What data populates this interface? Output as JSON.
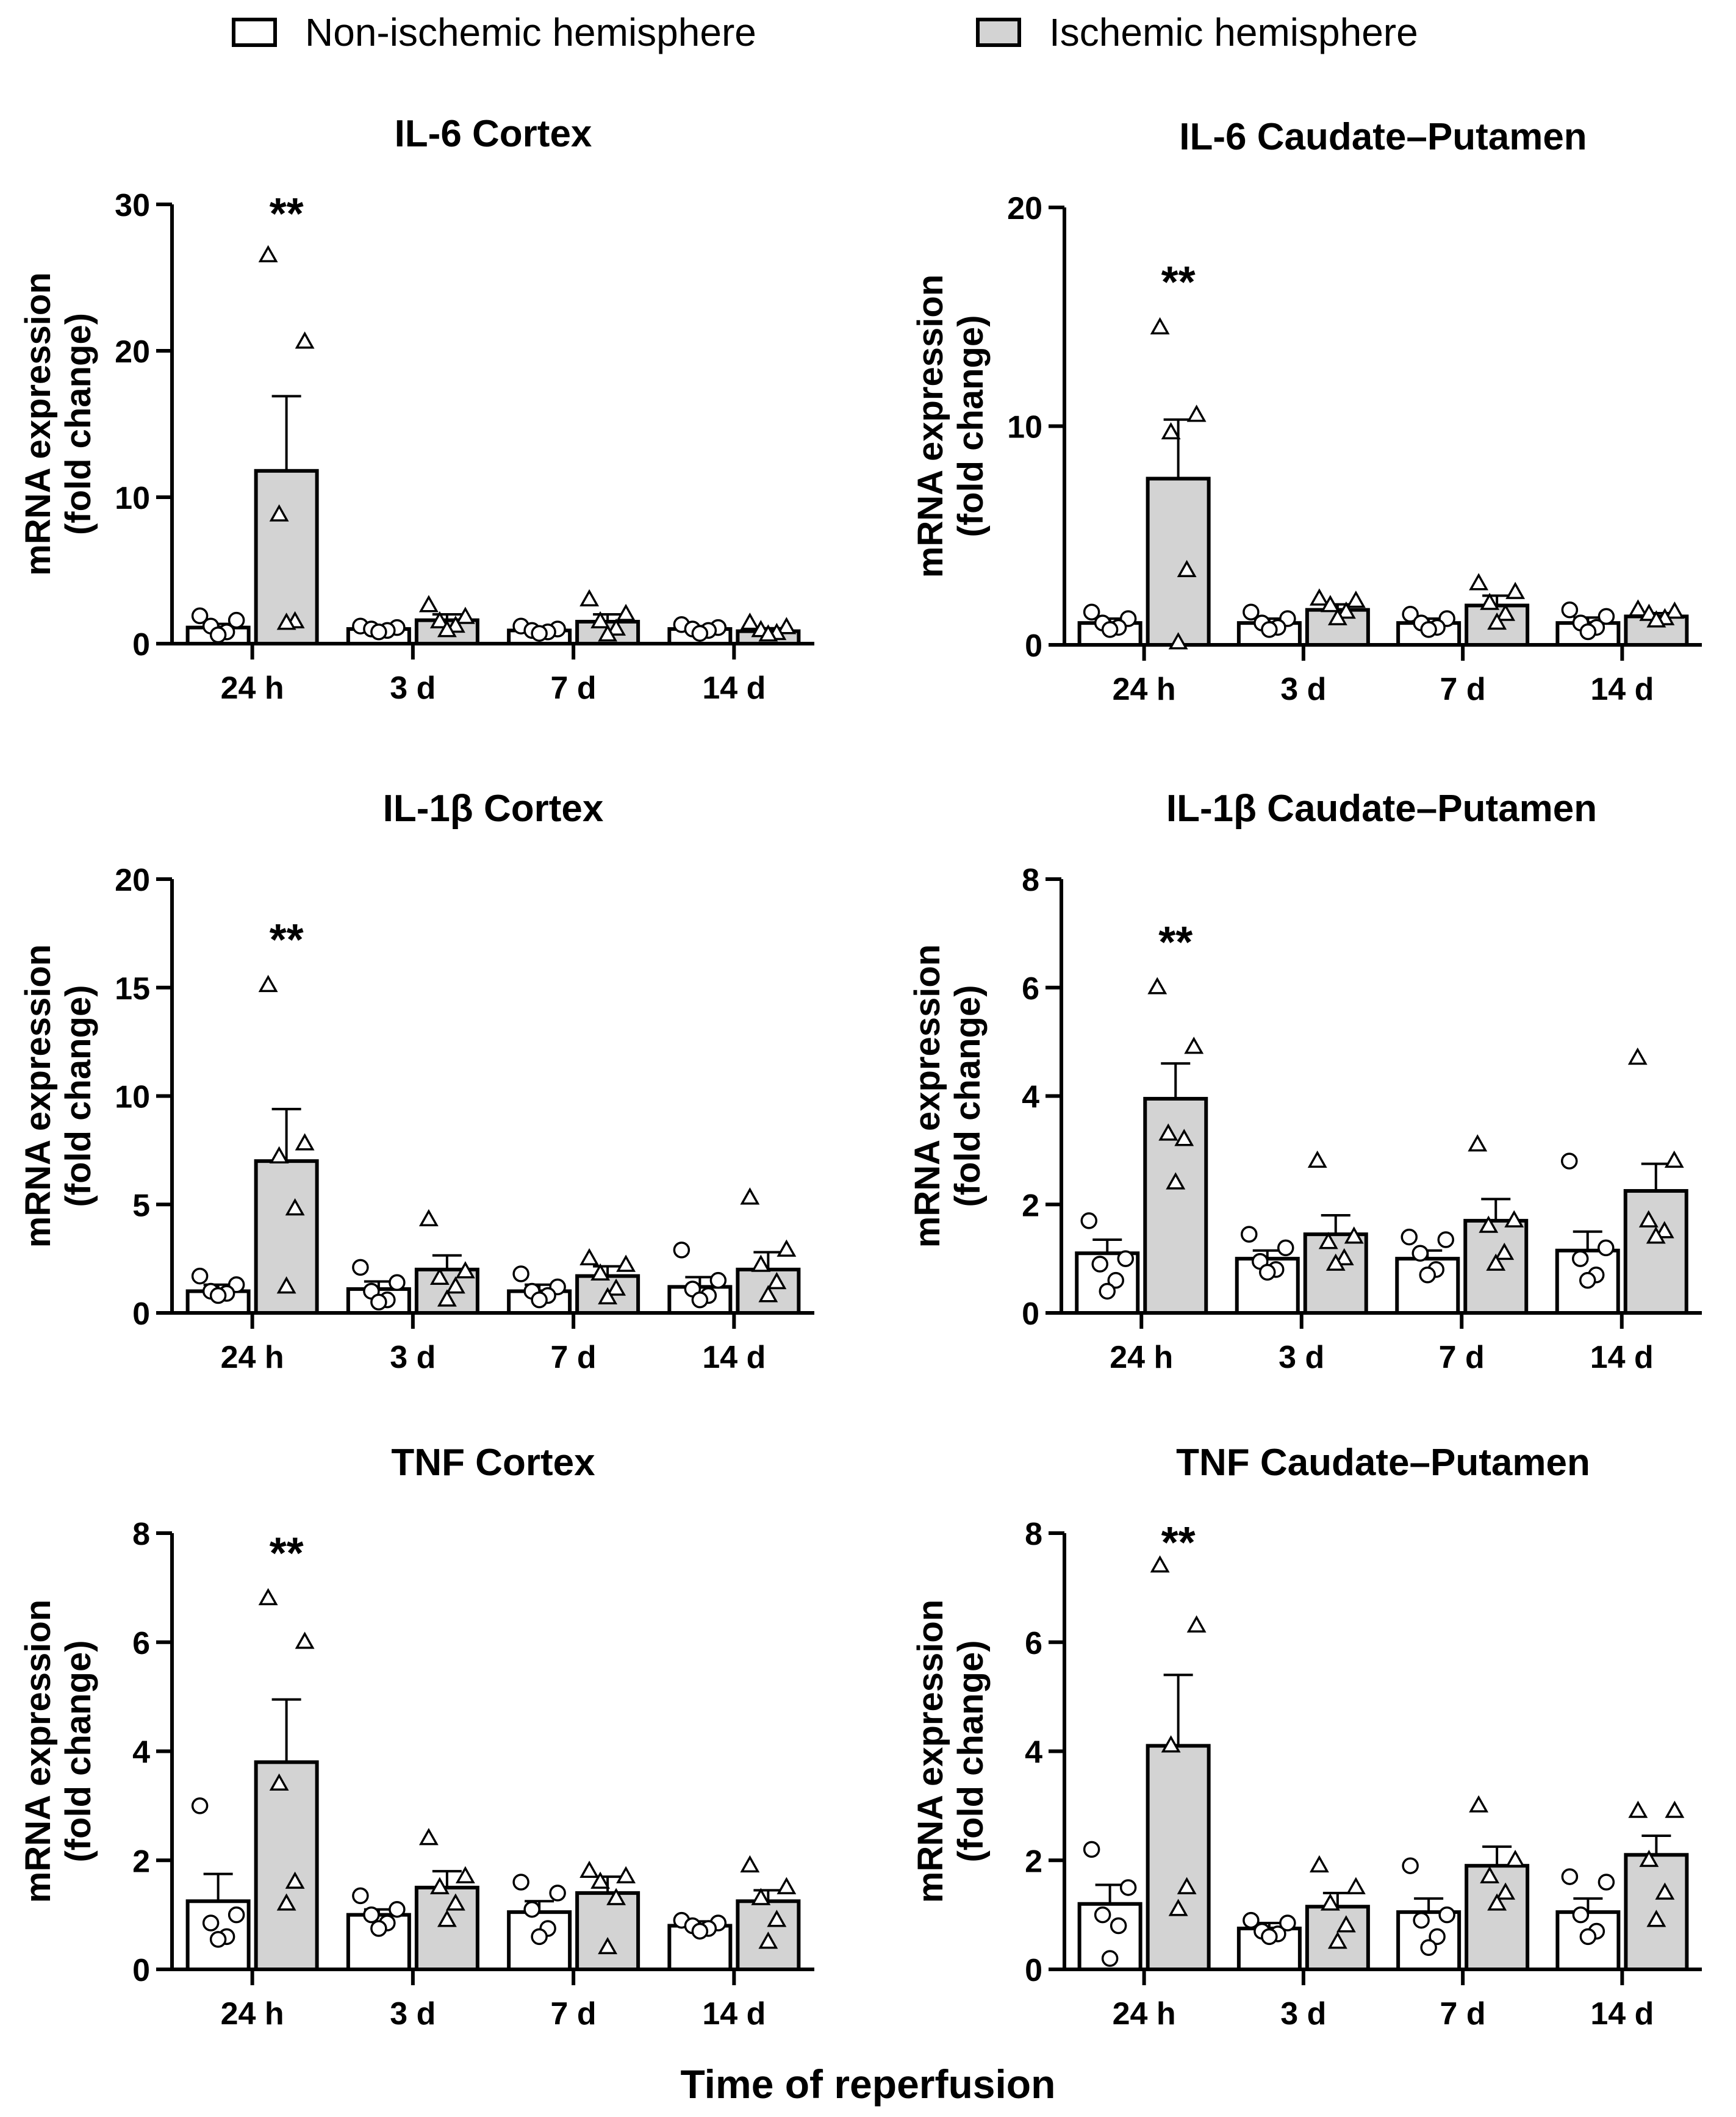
{
  "legend": {
    "non_ischemic": "Non-ischemic hemisphere",
    "ischemic": "Ischemic hemisphere"
  },
  "colors": {
    "non_ischemic": "#ffffff",
    "ischemic": "#d3d3d3",
    "axis": "#000000"
  },
  "x_axis_title": "Time of reperfusion",
  "chart_data": [
    {
      "type": "bar",
      "title": "IL-6 Cortex",
      "ylabel_line1": "mRNA expression",
      "ylabel_line2": "(fold change)",
      "categories": [
        "24 h",
        "3 d",
        "7 d",
        "14 d"
      ],
      "ylim": [
        0,
        30
      ],
      "yticks": [
        0,
        10,
        20,
        30
      ],
      "significance": [
        "**",
        "",
        "",
        ""
      ],
      "series": [
        {
          "name": "Non-ischemic hemisphere",
          "values": [
            1.1,
            1.0,
            0.9,
            1.0
          ],
          "sem": [
            0.25,
            0.2,
            0.15,
            0.2
          ],
          "points": [
            [
              1.9,
              1.6,
              1.2,
              0.8,
              0.6
            ],
            [
              1.2,
              1.1,
              1.0,
              0.9,
              0.8
            ],
            [
              1.2,
              1.0,
              0.9,
              0.8,
              0.7
            ],
            [
              1.3,
              1.1,
              1.0,
              0.9,
              0.7
            ]
          ]
        },
        {
          "name": "Ischemic hemisphere",
          "values": [
            11.8,
            1.6,
            1.5,
            0.85
          ],
          "sem": [
            5.1,
            0.4,
            0.5,
            0.2
          ],
          "points": [
            [
              26.5,
              20.6,
              8.8,
              1.5,
              1.4
            ],
            [
              2.6,
              1.8,
              1.5,
              1.2,
              0.9
            ],
            [
              3.0,
              2.0,
              1.5,
              1.0,
              0.6
            ],
            [
              1.4,
              1.1,
              0.9,
              0.7,
              0.6
            ]
          ]
        }
      ]
    },
    {
      "type": "bar",
      "title": "IL-6 Caudate–Putamen",
      "ylabel_line1": "mRNA expression",
      "ylabel_line2": "(fold change)",
      "categories": [
        "24 h",
        "3 d",
        "7 d",
        "14 d"
      ],
      "ylim": [
        0,
        20
      ],
      "yticks": [
        0,
        10,
        20
      ],
      "significance": [
        "**",
        "",
        "",
        ""
      ],
      "series": [
        {
          "name": "Non-ischemic hemisphere",
          "values": [
            1.0,
            1.0,
            1.0,
            1.0
          ],
          "sem": [
            0.2,
            0.2,
            0.2,
            0.25
          ],
          "points": [
            [
              1.5,
              1.2,
              1.0,
              0.8,
              0.7
            ],
            [
              1.5,
              1.2,
              1.0,
              0.8,
              0.7
            ],
            [
              1.4,
              1.2,
              1.0,
              0.8,
              0.7
            ],
            [
              1.6,
              1.3,
              1.0,
              0.8,
              0.6
            ]
          ]
        },
        {
          "name": "Ischemic hemisphere",
          "values": [
            7.6,
            1.6,
            1.8,
            1.3
          ],
          "sem": [
            2.7,
            0.25,
            0.45,
            0.15
          ],
          "points": [
            [
              14.5,
              10.5,
              9.7,
              3.4,
              0.1
            ],
            [
              2.1,
              2.0,
              1.8,
              1.5,
              1.2
            ],
            [
              2.8,
              2.4,
              1.9,
              1.4,
              1.0
            ],
            [
              1.6,
              1.5,
              1.4,
              1.2,
              1.1
            ]
          ]
        }
      ]
    },
    {
      "type": "bar",
      "title": "IL-1β Cortex",
      "ylabel_line1": "mRNA expression",
      "ylabel_line2": "(fold change)",
      "categories": [
        "24 h",
        "3 d",
        "7 d",
        "14 d"
      ],
      "ylim": [
        0,
        20
      ],
      "yticks": [
        0,
        5,
        10,
        15,
        20
      ],
      "significance": [
        "**",
        "",
        "",
        ""
      ],
      "series": [
        {
          "name": "Non-ischemic hemisphere",
          "values": [
            1.0,
            1.1,
            1.0,
            1.2
          ],
          "sem": [
            0.3,
            0.35,
            0.3,
            0.45
          ],
          "points": [
            [
              1.7,
              1.3,
              1.0,
              0.9,
              0.8
            ],
            [
              2.1,
              1.4,
              1.0,
              0.6,
              0.5
            ],
            [
              1.8,
              1.2,
              1.0,
              0.8,
              0.6
            ],
            [
              2.9,
              1.5,
              1.1,
              0.8,
              0.6
            ]
          ]
        },
        {
          "name": "Ischemic hemisphere",
          "values": [
            7.0,
            2.0,
            1.7,
            2.0
          ],
          "sem": [
            2.4,
            0.65,
            0.45,
            0.8
          ],
          "points": [
            [
              15.1,
              7.8,
              7.2,
              4.8,
              1.2
            ],
            [
              4.3,
              1.9,
              1.6,
              1.2,
              0.6
            ],
            [
              2.5,
              2.2,
              1.8,
              1.1,
              0.7
            ],
            [
              5.3,
              2.9,
              2.2,
              1.4,
              0.8
            ]
          ]
        }
      ]
    },
    {
      "type": "bar",
      "title": "IL-1β Caudate–Putamen",
      "ylabel_line1": "mRNA expression",
      "ylabel_line2": "(fold change)",
      "categories": [
        "24 h",
        "3 d",
        "7 d",
        "14 d"
      ],
      "ylim": [
        0,
        8
      ],
      "yticks": [
        0,
        2,
        4,
        6,
        8
      ],
      "significance": [
        "**",
        "",
        "",
        ""
      ],
      "series": [
        {
          "name": "Non-ischemic hemisphere",
          "values": [
            1.1,
            1.0,
            1.0,
            1.15
          ],
          "sem": [
            0.25,
            0.15,
            0.15,
            0.35
          ],
          "points": [
            [
              1.7,
              1.0,
              0.9,
              0.6,
              0.4
            ],
            [
              1.45,
              1.2,
              0.95,
              0.8,
              0.75
            ],
            [
              1.4,
              1.35,
              1.1,
              0.8,
              0.7
            ],
            [
              2.8,
              1.2,
              1.0,
              0.7,
              0.6
            ]
          ]
        },
        {
          "name": "Ischemic hemisphere",
          "values": [
            3.95,
            1.45,
            1.7,
            2.25
          ],
          "sem": [
            0.65,
            0.35,
            0.4,
            0.5
          ],
          "points": [
            [
              6.0,
              4.9,
              3.3,
              3.2,
              2.4
            ],
            [
              2.8,
              1.4,
              1.3,
              1.0,
              0.9
            ],
            [
              3.1,
              1.7,
              1.6,
              1.1,
              0.9
            ],
            [
              4.7,
              2.8,
              1.7,
              1.5,
              1.4
            ]
          ]
        }
      ]
    },
    {
      "type": "bar",
      "title": "TNF Cortex",
      "ylabel_line1": "mRNA expression",
      "ylabel_line2": "(fold change)",
      "categories": [
        "24 h",
        "3 d",
        "7 d",
        "14 d"
      ],
      "ylim": [
        0,
        8
      ],
      "yticks": [
        0,
        2,
        4,
        6,
        8
      ],
      "significance": [
        "**",
        "",
        "",
        ""
      ],
      "series": [
        {
          "name": "Non-ischemic hemisphere",
          "values": [
            1.25,
            1.0,
            1.05,
            0.8
          ],
          "sem": [
            0.5,
            0.1,
            0.2,
            0.08
          ],
          "points": [
            [
              3.0,
              1.0,
              0.85,
              0.6,
              0.55
            ],
            [
              1.35,
              1.1,
              1.0,
              0.85,
              0.75
            ],
            [
              1.6,
              1.4,
              1.1,
              0.75,
              0.6
            ],
            [
              0.9,
              0.85,
              0.8,
              0.75,
              0.7
            ]
          ]
        },
        {
          "name": "Ischemic hemisphere",
          "values": [
            3.8,
            1.5,
            1.4,
            1.25
          ],
          "sem": [
            1.15,
            0.3,
            0.3,
            0.2
          ],
          "points": [
            [
              6.8,
              6.0,
              3.4,
              1.6,
              1.2
            ],
            [
              2.4,
              1.7,
              1.5,
              1.2,
              0.9
            ],
            [
              1.8,
              1.7,
              1.6,
              1.3,
              0.4
            ],
            [
              1.9,
              1.5,
              1.3,
              0.9,
              0.5
            ]
          ]
        }
      ]
    },
    {
      "type": "bar",
      "title": "TNF Caudate–Putamen",
      "ylabel_line1": "mRNA expression",
      "ylabel_line2": "(fold change)",
      "categories": [
        "24 h",
        "3 d",
        "7 d",
        "14 d"
      ],
      "ylim": [
        0,
        8
      ],
      "yticks": [
        0,
        2,
        4,
        6,
        8
      ],
      "significance": [
        "**",
        "",
        "",
        ""
      ],
      "series": [
        {
          "name": "Non-ischemic hemisphere",
          "values": [
            1.2,
            0.75,
            1.05,
            1.05
          ],
          "sem": [
            0.35,
            0.1,
            0.25,
            0.25
          ],
          "points": [
            [
              2.2,
              1.5,
              1.0,
              0.8,
              0.2
            ],
            [
              0.9,
              0.85,
              0.7,
              0.65,
              0.6
            ],
            [
              1.9,
              1.0,
              0.9,
              0.6,
              0.4
            ],
            [
              1.7,
              1.6,
              1.0,
              0.7,
              0.6
            ]
          ]
        },
        {
          "name": "Ischemic hemisphere",
          "values": [
            4.1,
            1.15,
            1.9,
            2.1
          ],
          "sem": [
            1.3,
            0.25,
            0.35,
            0.35
          ],
          "points": [
            [
              7.4,
              6.3,
              4.1,
              1.5,
              1.1
            ],
            [
              1.9,
              1.5,
              1.2,
              0.8,
              0.5
            ],
            [
              3.0,
              2.0,
              1.7,
              1.4,
              1.2
            ],
            [
              2.9,
              2.9,
              2.0,
              1.4,
              0.9
            ]
          ]
        }
      ]
    }
  ]
}
